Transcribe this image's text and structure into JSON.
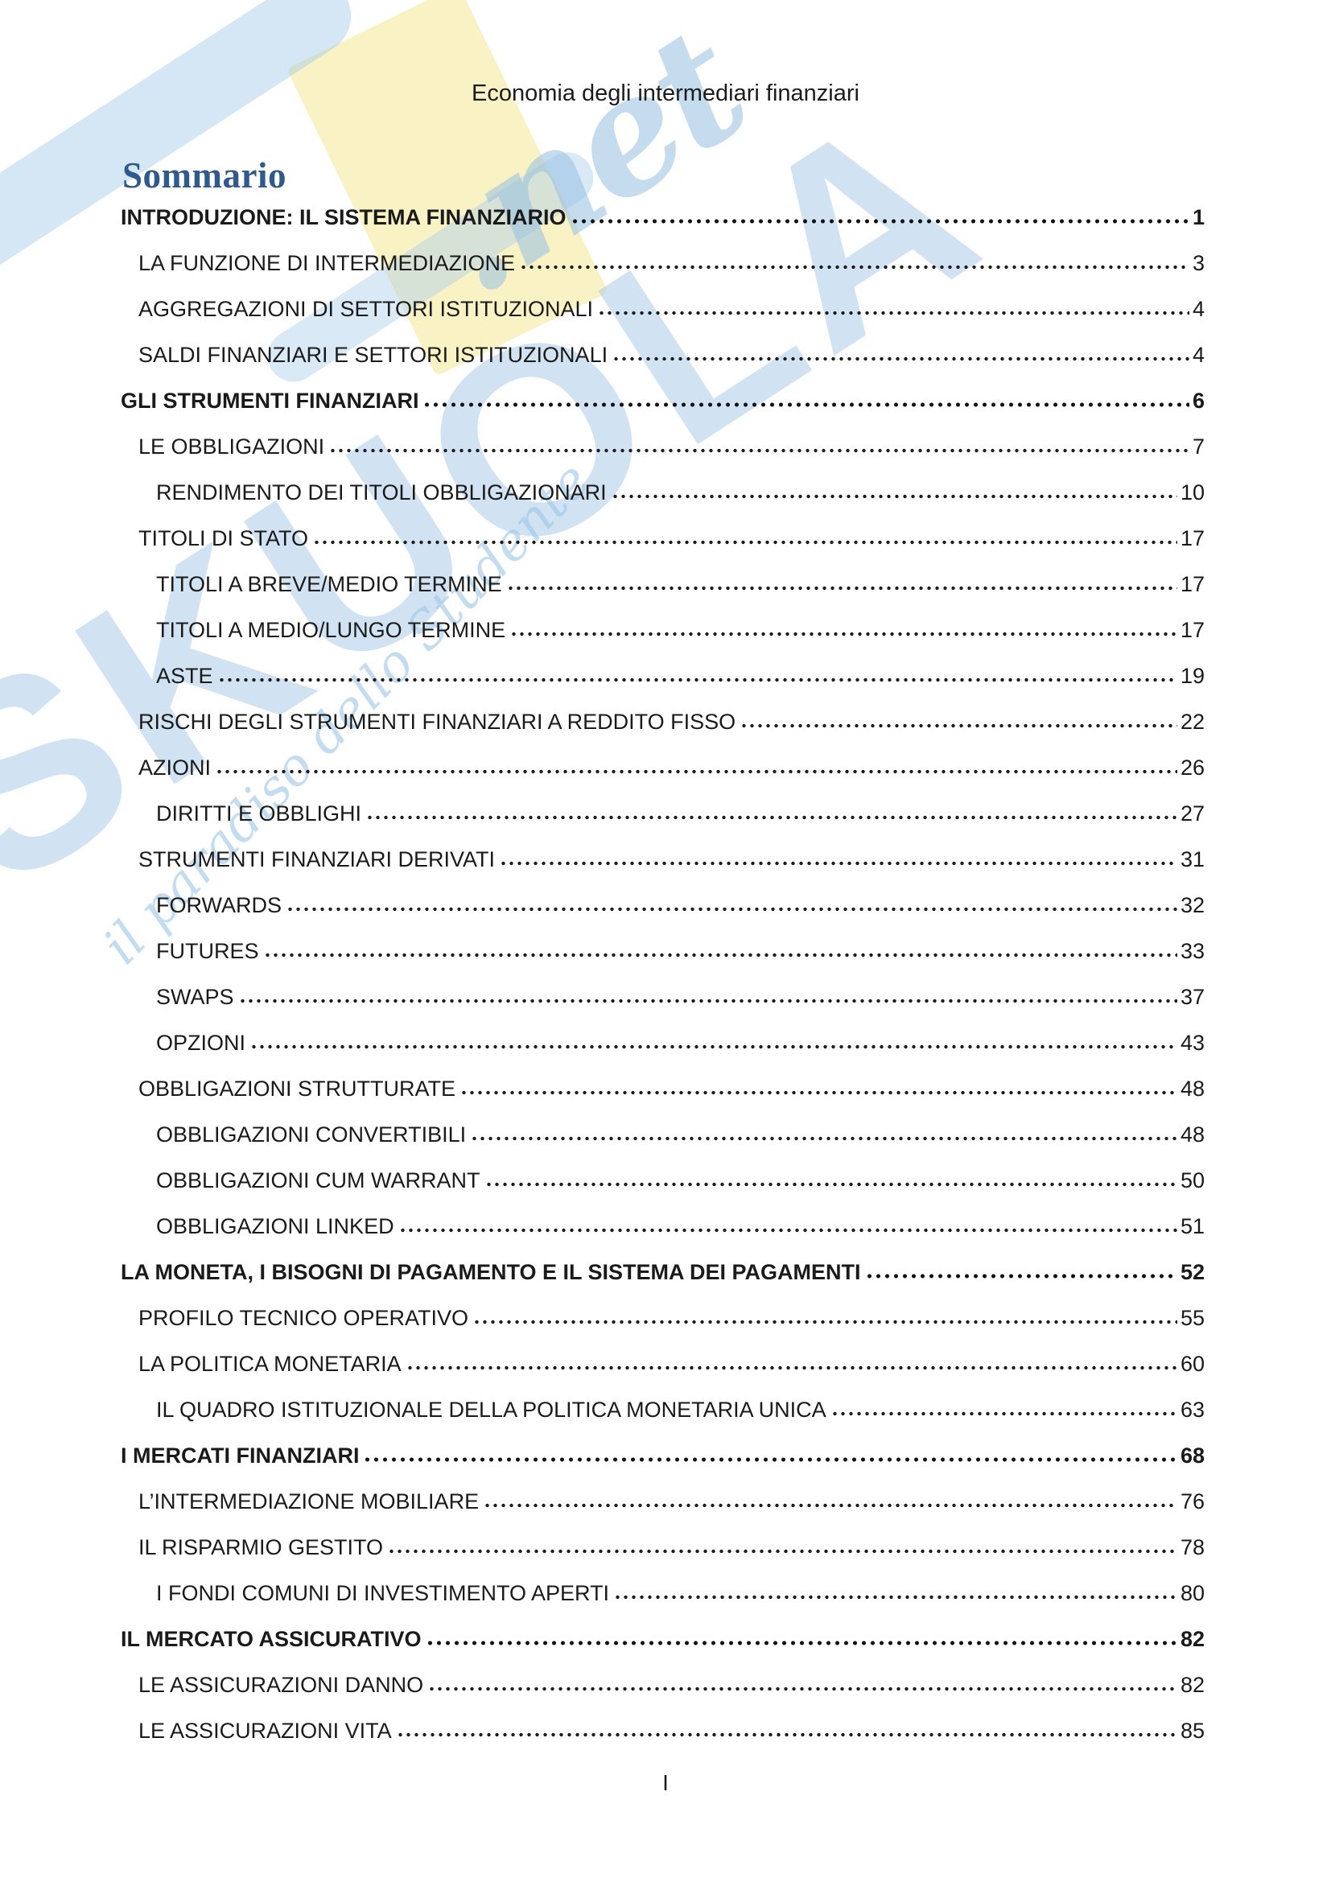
{
  "header": {
    "title": "Economia degli intermediari finanziari"
  },
  "page": {
    "title": "Sommario",
    "footer_page_label": "I"
  },
  "colors": {
    "title_blue": "#2e5a8c",
    "watermark_blue": "#a4c8e6",
    "watermark_yellow": "#f9f2c5",
    "text": "#1a1a1a"
  },
  "watermark": {
    "brand": "SKUOLA",
    "brand_suffix": ".net",
    "tagline": "il paradiso dello Studente"
  },
  "toc": {
    "entries": [
      {
        "label": "INTRODUZIONE: IL SISTEMA FINANZIARIO",
        "page": "1",
        "level": 0,
        "bold": true
      },
      {
        "label": "LA FUNZIONE DI INTERMEDIAZIONE",
        "page": "3",
        "level": 1,
        "bold": false
      },
      {
        "label": "AGGREGAZIONI DI SETTORI ISTITUZIONALI",
        "page": "4",
        "level": 1,
        "bold": false
      },
      {
        "label": "SALDI FINANZIARI E SETTORI ISTITUZIONALI",
        "page": "4",
        "level": 1,
        "bold": false
      },
      {
        "label": "GLI STRUMENTI FINANZIARI",
        "page": "6",
        "level": 0,
        "bold": true
      },
      {
        "label": "LE OBBLIGAZIONI",
        "page": "7",
        "level": 1,
        "bold": false
      },
      {
        "label": "RENDIMENTO DEI TITOLI OBBLIGAZIONARI",
        "page": "10",
        "level": 2,
        "bold": false
      },
      {
        "label": "TITOLI DI STATO",
        "page": "17",
        "level": 1,
        "bold": false
      },
      {
        "label": "TITOLI A BREVE/MEDIO TERMINE",
        "page": "17",
        "level": 2,
        "bold": false
      },
      {
        "label": "TITOLI A MEDIO/LUNGO TERMINE",
        "page": "17",
        "level": 2,
        "bold": false
      },
      {
        "label": "ASTE",
        "page": "19",
        "level": 2,
        "bold": false
      },
      {
        "label": "RISCHI DEGLI STRUMENTI FINANZIARI A REDDITO FISSO",
        "page": "22",
        "level": 1,
        "bold": false
      },
      {
        "label": "AZIONI",
        "page": "26",
        "level": 1,
        "bold": false
      },
      {
        "label": "DIRITTI E OBBLIGHI",
        "page": "27",
        "level": 2,
        "bold": false
      },
      {
        "label": "STRUMENTI FINANZIARI DERIVATI",
        "page": "31",
        "level": 1,
        "bold": false
      },
      {
        "label": "FORWARDS",
        "page": "32",
        "level": 2,
        "bold": false
      },
      {
        "label": "FUTURES",
        "page": "33",
        "level": 2,
        "bold": false
      },
      {
        "label": "SWAPS",
        "page": "37",
        "level": 2,
        "bold": false
      },
      {
        "label": "OPZIONI",
        "page": "43",
        "level": 2,
        "bold": false
      },
      {
        "label": "OBBLIGAZIONI STRUTTURATE",
        "page": "48",
        "level": 1,
        "bold": false
      },
      {
        "label": "OBBLIGAZIONI CONVERTIBILI",
        "page": "48",
        "level": 2,
        "bold": false
      },
      {
        "label": "OBBLIGAZIONI CUM WARRANT",
        "page": "50",
        "level": 2,
        "bold": false
      },
      {
        "label": "OBBLIGAZIONI LINKED",
        "page": "51",
        "level": 2,
        "bold": false
      },
      {
        "label": "LA MONETA, I BISOGNI DI PAGAMENTO E IL SISTEMA DEI PAGAMENTI",
        "page": "52",
        "level": 0,
        "bold": true
      },
      {
        "label": "PROFILO TECNICO OPERATIVO",
        "page": "55",
        "level": 1,
        "bold": false
      },
      {
        "label": "LA POLITICA MONETARIA",
        "page": "60",
        "level": 1,
        "bold": false
      },
      {
        "label": "IL QUADRO ISTITUZIONALE DELLA POLITICA MONETARIA UNICA",
        "page": "63",
        "level": 2,
        "bold": false
      },
      {
        "label": "I MERCATI FINANZIARI",
        "page": "68",
        "level": 0,
        "bold": true
      },
      {
        "label": "L’INTERMEDIAZIONE MOBILIARE",
        "page": "76",
        "level": 1,
        "bold": false
      },
      {
        "label": "IL RISPARMIO GESTITO",
        "page": "78",
        "level": 1,
        "bold": false
      },
      {
        "label": "I FONDI COMUNI DI INVESTIMENTO APERTI",
        "page": "80",
        "level": 2,
        "bold": false
      },
      {
        "label": "IL MERCATO ASSICURATIVO",
        "page": "82",
        "level": 0,
        "bold": true
      },
      {
        "label": "LE ASSICURAZIONI DANNO",
        "page": "82",
        "level": 1,
        "bold": false
      },
      {
        "label": "LE ASSICURAZIONI VITA",
        "page": "85",
        "level": 1,
        "bold": false
      }
    ]
  }
}
